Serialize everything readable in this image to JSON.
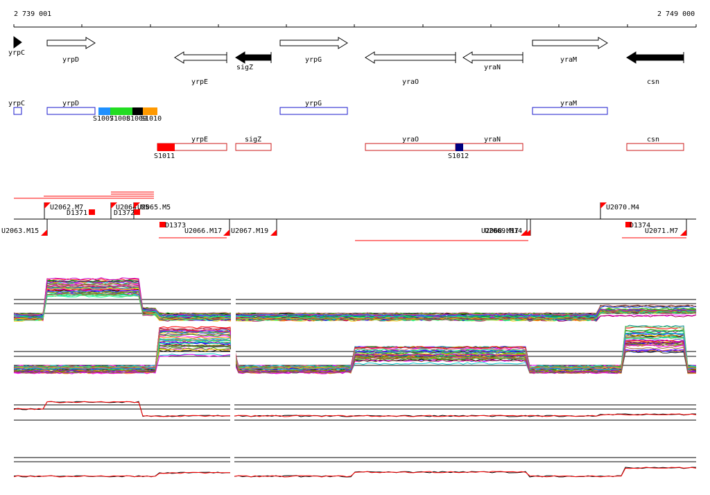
{
  "ruler": {
    "start_label": "2 739 001",
    "end_label": "2 749 000"
  },
  "colors": {
    "gene_outline": "#000000",
    "gene_filled": "#000000",
    "blue_box": "#1a1acc",
    "red_box": "#cc1a1a",
    "red": "#ff0000",
    "navy": "#000080"
  },
  "genes": [
    {
      "name": "yrpC",
      "strand": "+",
      "filled": true
    },
    {
      "name": "yrpD",
      "strand": "+",
      "filled": false
    },
    {
      "name": "yrpE",
      "strand": "-",
      "filled": false
    },
    {
      "name": "sigZ",
      "strand": "-",
      "filled": true
    },
    {
      "name": "yrpG",
      "strand": "+",
      "filled": false
    },
    {
      "name": "yraO",
      "strand": "-",
      "filled": false
    },
    {
      "name": "yraN",
      "strand": "-",
      "filled": false
    },
    {
      "name": "yraM",
      "strand": "+",
      "filled": false
    },
    {
      "name": "csn",
      "strand": "-",
      "filled": true
    }
  ],
  "transcript_boxes": [
    {
      "name": "yrpC",
      "strand": "+"
    },
    {
      "name": "yrpD",
      "strand": "+"
    },
    {
      "name": "yrpG",
      "strand": "+"
    },
    {
      "name": "yraM",
      "strand": "+"
    },
    {
      "name": "yrpE",
      "strand": "-"
    },
    {
      "name": "sigZ",
      "strand": "-"
    },
    {
      "name": "yraO",
      "strand": "-"
    },
    {
      "name": "yraN",
      "strand": "-"
    },
    {
      "name": "csn",
      "strand": "-"
    }
  ],
  "segments": [
    {
      "name": "S1007",
      "color": "#1e90ff"
    },
    {
      "name": "S1008",
      "color": "#22dd22"
    },
    {
      "name": "S1009",
      "color": "#000000"
    },
    {
      "name": "S1010",
      "color": "#ff9900"
    },
    {
      "name": "S1011",
      "color": "#ff0000"
    },
    {
      "name": "S1012",
      "color": "#000080"
    }
  ],
  "upshifts": [
    "U2062.M7",
    "U2064.M5",
    "U2065.M5",
    "U2070.M4"
  ],
  "downshifts": [
    "U2063.M15",
    "U2066.M17",
    "U2067.M19",
    "U2068.M17",
    "U2069.M14",
    "U2071.M7"
  ],
  "dlabels": [
    "D1371",
    "D1372",
    "D1373",
    "D1374"
  ],
  "series_colors": [
    "#ff0000",
    "#00aa00",
    "#0000ff",
    "#ff00ff",
    "#00cccc",
    "#ff8800",
    "#8800ff",
    "#888800",
    "#008888",
    "#aa0055",
    "#55aa00",
    "#444444",
    "#ffcc00",
    "#00ff88",
    "#cc00cc",
    "#3366ff",
    "#996633",
    "#66cc66",
    "#cc6666",
    "#6666cc",
    "#000000"
  ]
}
